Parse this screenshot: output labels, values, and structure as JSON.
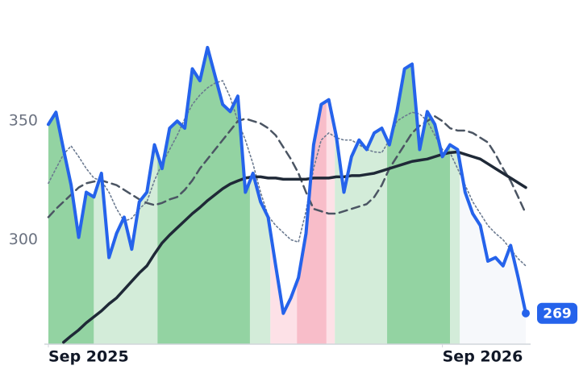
{
  "chart_data": {
    "type": "line",
    "x": [
      0,
      1,
      2,
      3,
      4,
      5,
      6,
      7,
      8,
      9,
      10,
      11,
      12,
      13,
      14,
      15,
      16,
      17,
      18,
      19,
      20,
      21,
      22,
      23,
      24,
      25,
      26,
      27,
      28,
      29,
      30,
      31,
      32,
      33,
      34,
      35,
      36,
      37,
      38,
      39,
      40,
      41,
      42,
      43,
      44,
      45,
      46,
      47,
      48,
      49,
      50,
      51,
      52,
      53,
      54,
      55,
      56,
      57,
      58,
      59,
      60,
      61,
      62,
      63
    ],
    "xlim": [
      0,
      63
    ],
    "xticks": [
      {
        "value": 0,
        "label": "Sep 2025"
      },
      {
        "value": 52,
        "label": "Sep 2026"
      }
    ],
    "ylim": [
      256,
      401
    ],
    "yticks": [
      300,
      350
    ],
    "regions": [
      {
        "from": 0,
        "to": 6,
        "color": "#93d3a2"
      },
      {
        "from": 6,
        "to": 14.4,
        "color": "#d3ecd9"
      },
      {
        "from": 14.4,
        "to": 26.6,
        "color": "#93d3a2"
      },
      {
        "from": 26.6,
        "to": 29.3,
        "color": "#d3ecd9"
      },
      {
        "from": 29.3,
        "to": 32.8,
        "color": "#fde1e7"
      },
      {
        "from": 32.8,
        "to": 36.7,
        "color": "#f8bdc9"
      },
      {
        "from": 36.7,
        "to": 37.8,
        "color": "#fde1e7"
      },
      {
        "from": 37.8,
        "to": 44.7,
        "color": "#d3ecd9"
      },
      {
        "from": 44.7,
        "to": 53,
        "color": "#93d3a2"
      },
      {
        "from": 53,
        "to": 54.3,
        "color": "#d3ecd9"
      },
      {
        "from": 54.3,
        "to": 63,
        "color": "#f6f8fb"
      }
    ],
    "series": [
      {
        "color": "#2563eb",
        "style": "solid",
        "width": 4,
        "values": [
          348.6,
          353.7,
          338,
          323,
          301,
          320,
          318,
          328,
          292.5,
          302.7,
          309.5,
          296,
          316,
          320,
          340,
          330,
          347,
          350,
          347,
          372,
          367,
          381,
          369,
          357,
          354,
          360.5,
          320,
          328,
          316,
          309.5,
          289,
          269,
          275.5,
          284,
          302.7,
          340,
          357,
          359,
          343.5,
          320,
          335,
          342,
          338,
          345,
          347,
          340,
          354,
          372,
          374,
          338,
          354,
          348.6,
          335,
          340,
          338,
          320,
          311,
          306,
          291,
          292.5,
          289,
          297.6,
          284,
          269
        ]
      },
      {
        "color": "#1f2937",
        "style": "solid",
        "width": 3.5,
        "values": [
          null,
          null,
          256.8,
          259.5,
          262,
          265,
          267.5,
          270,
          273,
          275.5,
          279,
          282.5,
          286,
          289,
          294,
          298.6,
          302,
          305,
          308,
          311,
          313.6,
          316.5,
          319,
          321.5,
          323.5,
          324.8,
          326,
          326.5,
          326.5,
          326,
          326,
          325.5,
          325.5,
          325.5,
          325.5,
          326,
          326,
          326,
          326.5,
          326.5,
          327,
          327,
          327.5,
          328,
          329,
          330,
          331,
          332,
          333,
          333.5,
          334,
          335,
          336,
          336.7,
          337,
          336,
          335,
          334,
          332,
          330,
          328,
          326,
          324,
          322
        ]
      },
      {
        "color": "#4b5563",
        "style": "dashed",
        "width": 2.5,
        "values": [
          309.5,
          313,
          316,
          319,
          322,
          323.8,
          324.5,
          325,
          324,
          323,
          321,
          319,
          317,
          315.5,
          314.6,
          315.5,
          317,
          318,
          321,
          325,
          330,
          334,
          338,
          342,
          346,
          350,
          351,
          350,
          349,
          347,
          344,
          339,
          334,
          328,
          320,
          313,
          312,
          311,
          311,
          312,
          313,
          314,
          315,
          318,
          323,
          330,
          335,
          340,
          345,
          348,
          350,
          352,
          350,
          347,
          346,
          346,
          345,
          343,
          341,
          336,
          330,
          324.8,
          318,
          311
        ]
      },
      {
        "color": "#6b7a90",
        "style": "dotted",
        "width": 1.6,
        "values": [
          323.8,
          330,
          336,
          339.5,
          335,
          330,
          326,
          324.8,
          320,
          313,
          307.8,
          309,
          313,
          316,
          325,
          332,
          338,
          344,
          351,
          357,
          361,
          364,
          366,
          367,
          360,
          350,
          342,
          332,
          320,
          310,
          306,
          303,
          300,
          299,
          312,
          330,
          342,
          345,
          343,
          342,
          342,
          340,
          338,
          337,
          336.7,
          342,
          350,
          352,
          353.7,
          353,
          350,
          344,
          338,
          336.7,
          330,
          323,
          316,
          311,
          306,
          302.7,
          300,
          296,
          292,
          289
        ]
      }
    ]
  }
}
